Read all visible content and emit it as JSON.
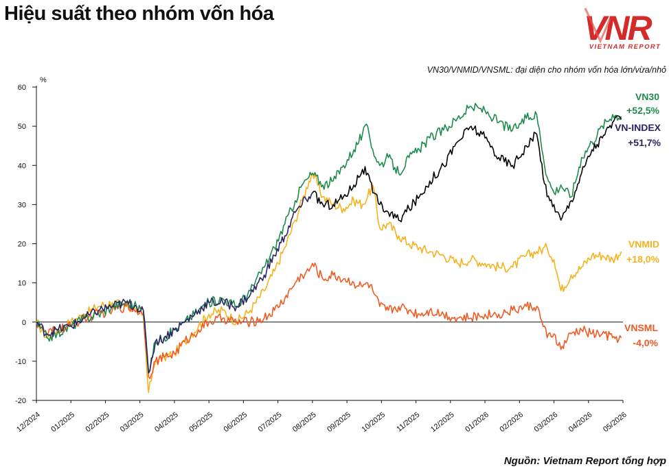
{
  "title": "Hiệu suất theo nhóm vốn hóa",
  "brand": {
    "logo_text": "VNR",
    "sub_text": "VIETNAM REPORT",
    "logo_color": "#d42a2a"
  },
  "note": "VN30/VNMID/VNSML: đại diện cho nhóm vốn hóa lớn/vừa/nhỏ",
  "source": "Nguồn: Vietnam Report tổng hợp",
  "chart_data": {
    "type": "line",
    "ylabel": "%",
    "ylim": [
      -20,
      60
    ],
    "yticks": [
      60,
      50,
      40,
      30,
      20,
      10,
      0,
      -10,
      -20
    ],
    "x_range": [
      "12/2024",
      "05/2026"
    ],
    "x_tick_labels": [
      "12/2024",
      "01/2025",
      "02/2025",
      "03/2025",
      "04/2025",
      "05/2025",
      "06/2025",
      "07/2025",
      "08/2025",
      "09/2025",
      "10/2025",
      "11/2025",
      "12/2025",
      "01/2026",
      "02/2026",
      "03/2026",
      "04/2026",
      "05/2026"
    ],
    "grid": false,
    "zero_line": true,
    "series": [
      {
        "name": "VNMID",
        "end_label": "+18,0%",
        "color": "#f5b21d",
        "x": [
          0,
          0.3,
          0.6,
          1.0,
          1.4,
          1.8,
          2.2,
          2.6,
          2.9,
          3.1,
          3.25,
          3.45,
          3.7,
          4.0,
          4.3,
          4.7,
          5.0,
          5.4,
          5.8,
          6.2,
          6.6,
          6.9,
          7.2,
          7.5,
          7.7,
          7.9,
          8.0,
          8.3,
          8.6,
          8.9,
          9.2,
          9.45,
          9.6,
          9.75,
          9.95,
          10.2,
          10.5,
          10.8,
          11.1,
          11.4,
          11.8,
          12.2,
          12.6,
          13.0,
          13.4,
          13.8,
          14.2,
          14.5,
          14.8,
          15.0,
          15.2,
          15.5,
          15.8,
          16.1,
          16.4,
          16.7,
          16.95
        ],
        "y": [
          0,
          -4,
          -2,
          0,
          2,
          4,
          5,
          4,
          3,
          2,
          -18,
          -10,
          -9,
          -8,
          -5,
          -1,
          2,
          3,
          0,
          3,
          8,
          13,
          19,
          26,
          31,
          36,
          38,
          32,
          30,
          29,
          31,
          30,
          32,
          35,
          24,
          25,
          22,
          20,
          19,
          18,
          17,
          15,
          16,
          15,
          14,
          14,
          17,
          18,
          19,
          16,
          8,
          12,
          14,
          17,
          17,
          16,
          18
        ]
      },
      {
        "name": "VNSML",
        "end_label": "-4,0%",
        "color": "#f05a22",
        "x": [
          0,
          0.3,
          0.6,
          1.0,
          1.4,
          1.8,
          2.2,
          2.6,
          2.9,
          3.1,
          3.25,
          3.45,
          3.7,
          4.0,
          4.3,
          4.7,
          5.0,
          5.4,
          5.8,
          6.2,
          6.6,
          6.9,
          7.2,
          7.5,
          7.7,
          7.9,
          8.0,
          8.3,
          8.6,
          8.9,
          9.2,
          9.45,
          9.6,
          9.75,
          9.95,
          10.2,
          10.5,
          10.8,
          11.1,
          11.4,
          11.8,
          12.2,
          12.6,
          13.0,
          13.4,
          13.8,
          14.2,
          14.5,
          14.8,
          15.0,
          15.2,
          15.5,
          15.8,
          16.1,
          16.4,
          16.7,
          16.95
        ],
        "y": [
          0,
          -3,
          -2,
          -1,
          1,
          2,
          3,
          4,
          3,
          2,
          -14,
          -10,
          -9,
          -8,
          -5,
          -2,
          0,
          1,
          0,
          0,
          1,
          3,
          6,
          10,
          12,
          13,
          15,
          11,
          12,
          11,
          10,
          9,
          10,
          8,
          4,
          3,
          4,
          3,
          2,
          3,
          2,
          1,
          1,
          2,
          2,
          3,
          4,
          4,
          -4,
          -3,
          -7,
          -3,
          -2,
          -3,
          -3,
          -4,
          -4
        ]
      },
      {
        "name": "VN30",
        "end_label": "+52,5%",
        "color": "#1f8a4c",
        "x": [
          0,
          0.3,
          0.6,
          1.0,
          1.4,
          1.8,
          2.2,
          2.6,
          2.9,
          3.1,
          3.25,
          3.45,
          3.7,
          4.0,
          4.3,
          4.7,
          5.0,
          5.4,
          5.8,
          6.2,
          6.6,
          6.9,
          7.2,
          7.5,
          7.7,
          7.9,
          8.0,
          8.3,
          8.6,
          8.9,
          9.2,
          9.45,
          9.6,
          9.75,
          9.95,
          10.2,
          10.5,
          10.8,
          11.1,
          11.4,
          11.8,
          12.2,
          12.6,
          13.0,
          13.4,
          13.8,
          14.2,
          14.5,
          14.8,
          15.0,
          15.2,
          15.5,
          15.8,
          16.1,
          16.4,
          16.7,
          16.95
        ],
        "y": [
          0,
          -4,
          -3,
          -1,
          1,
          2,
          4,
          5,
          4,
          3,
          -13,
          -5,
          -4,
          -2,
          0,
          3,
          5,
          6,
          4,
          8,
          14,
          19,
          25,
          31,
          35,
          37,
          38,
          35,
          36,
          40,
          44,
          48,
          50,
          44,
          40,
          42,
          38,
          42,
          44,
          47,
          49,
          52,
          55,
          54,
          51,
          49,
          52,
          53,
          37,
          33,
          35,
          32,
          42,
          46,
          50,
          53,
          52.5
        ]
      },
      {
        "name": "VN-INDEX",
        "end_label": "+51,7%",
        "color": "#2a2462",
        "x": [
          0,
          0.3,
          0.6,
          1.0,
          1.4,
          1.8,
          2.2,
          2.6,
          2.9,
          3.1,
          3.25,
          3.45,
          3.7,
          4.0,
          4.3,
          4.7,
          5.0,
          5.4,
          5.8,
          6.2,
          6.6,
          6.9,
          7.2,
          7.5,
          7.7,
          7.9,
          8.0
        ],
        "y": [
          0,
          -3,
          -2,
          -1,
          1,
          3,
          4,
          5,
          4,
          3,
          -13,
          -5,
          -4,
          -2,
          0,
          3,
          5,
          5,
          4,
          7,
          12,
          17,
          22,
          28,
          30,
          32,
          33
        ]
      },
      {
        "name": "",
        "color": "#000000",
        "x": [
          8.0,
          8.3,
          8.6,
          8.9,
          9.2,
          9.45,
          9.6,
          9.75,
          9.95,
          10.2,
          10.5,
          10.8,
          11.1,
          11.4,
          11.8,
          12.2,
          12.6,
          13.0,
          13.4,
          13.8,
          14.2,
          14.5,
          14.8,
          15.0,
          15.2,
          15.5,
          15.8,
          16.1,
          16.4,
          16.7,
          16.95
        ],
        "y": [
          33,
          30,
          30,
          32,
          35,
          39,
          38,
          33,
          30,
          28,
          26,
          29,
          32,
          36,
          40,
          46,
          50,
          47,
          42,
          40,
          45,
          48,
          32,
          30,
          26,
          31,
          38,
          44,
          47,
          51,
          51.7
        ]
      }
    ]
  }
}
